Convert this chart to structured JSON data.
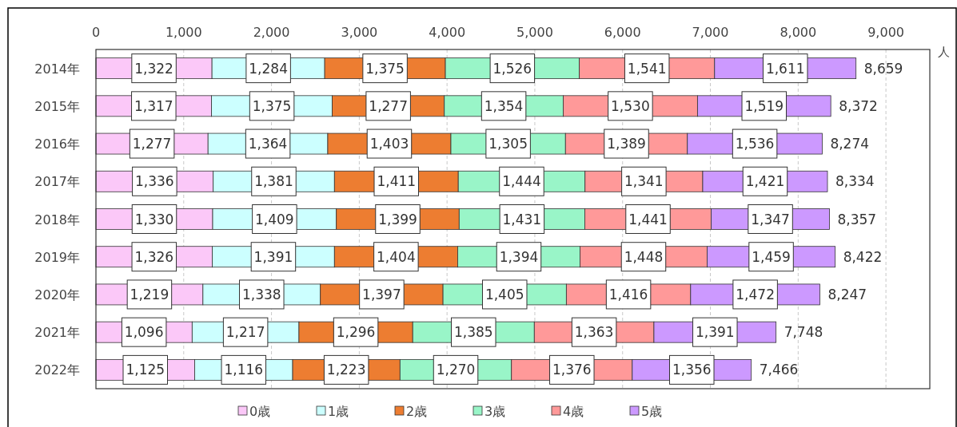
{
  "chart_data": {
    "type": "bar",
    "orientation": "horizontal",
    "stacked": true,
    "xlabel": "人",
    "categories": [
      "2014年",
      "2015年",
      "2016年",
      "2017年",
      "2018年",
      "2019年",
      "2020年",
      "2021年",
      "2022年"
    ],
    "series": [
      {
        "name": "0歳",
        "color": "#fbc8f8",
        "values": [
          1322,
          1317,
          1277,
          1336,
          1330,
          1326,
          1219,
          1096,
          1125
        ],
        "value_labels": [
          "1,322",
          "1,317",
          "1,277",
          "1,336",
          "1,330",
          "1,326",
          "1,219",
          "1,096",
          "1,125"
        ]
      },
      {
        "name": "1歳",
        "color": "#ccffff",
        "values": [
          1284,
          1375,
          1364,
          1381,
          1409,
          1391,
          1338,
          1217,
          1116
        ],
        "value_labels": [
          "1,284",
          "1,375",
          "1,364",
          "1,381",
          "1,409",
          "1,391",
          "1,338",
          "1,217",
          "1,116"
        ]
      },
      {
        "name": "2歳",
        "color": "#ed7d31",
        "values": [
          1375,
          1277,
          1403,
          1411,
          1399,
          1404,
          1397,
          1296,
          1223
        ],
        "value_labels": [
          "1,375",
          "1,277",
          "1,403",
          "1,411",
          "1,399",
          "1,404",
          "1,397",
          "1,296",
          "1,223"
        ]
      },
      {
        "name": "3歳",
        "color": "#99f5c8",
        "values": [
          1526,
          1354,
          1305,
          1444,
          1431,
          1394,
          1405,
          1385,
          1270
        ],
        "value_labels": [
          "1,526",
          "1,354",
          "1,305",
          "1,444",
          "1,431",
          "1,394",
          "1,405",
          "1,385",
          "1,270"
        ]
      },
      {
        "name": "4歳",
        "color": "#ff9999",
        "values": [
          1541,
          1530,
          1389,
          1341,
          1441,
          1448,
          1416,
          1363,
          1376
        ],
        "value_labels": [
          "1,541",
          "1,530",
          "1,389",
          "1,341",
          "1,441",
          "1,448",
          "1,416",
          "1,363",
          "1,376"
        ]
      },
      {
        "name": "5歳",
        "color": "#cc99ff",
        "values": [
          1611,
          1519,
          1536,
          1421,
          1347,
          1459,
          1472,
          1391,
          1356
        ],
        "value_labels": [
          "1,611",
          "1,519",
          "1,536",
          "1,421",
          "1,347",
          "1,459",
          "1,472",
          "1,391",
          "1,356"
        ]
      }
    ],
    "totals": [
      "8,659",
      "8,372",
      "8,274",
      "8,334",
      "8,357",
      "8,422",
      "8,247",
      "7,748",
      "7,466"
    ],
    "xlim": [
      0,
      9500
    ],
    "xticks": [
      0,
      {
        "value": 1000,
        "label": "1,000"
      },
      {
        "value": 2000,
        "label": "2,000"
      },
      {
        "value": 3000,
        "label": "3,000"
      },
      {
        "value": 4000,
        "label": "4,000"
      },
      {
        "value": 5000,
        "label": "5,000"
      },
      {
        "value": 6000,
        "label": "6,000"
      },
      {
        "value": 7000,
        "label": "7,000"
      },
      {
        "value": 8000,
        "label": "8,000"
      },
      {
        "value": 9000,
        "label": "9,000"
      }
    ],
    "grid": "x",
    "legend": "bottom"
  }
}
